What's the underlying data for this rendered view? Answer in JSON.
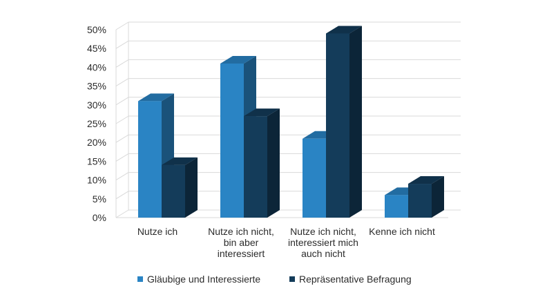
{
  "chart_data": {
    "type": "bar",
    "title": "",
    "xlabel": "",
    "ylabel": "",
    "ylim": [
      0,
      50
    ],
    "y_ticks": [
      "0%",
      "5%",
      "10%",
      "15%",
      "20%",
      "25%",
      "30%",
      "35%",
      "40%",
      "45%",
      "50%"
    ],
    "grid": true,
    "legend_position": "bottom",
    "style": "3d-column",
    "categories": [
      [
        "Nutze ich"
      ],
      [
        "Nutze ich nicht,",
        "bin aber",
        "interessiert"
      ],
      [
        "Nutze ich nicht,",
        "interessiert mich",
        "auch nicht"
      ],
      [
        "Kenne ich nicht"
      ]
    ],
    "series": [
      {
        "name": "Gläubige und Interessierte",
        "color": "#2a84c4",
        "values": [
          31,
          41,
          21,
          6
        ]
      },
      {
        "name": "Repräsentative Befragung",
        "color": "#143c5a",
        "values": [
          14,
          27,
          49,
          9
        ]
      }
    ]
  }
}
